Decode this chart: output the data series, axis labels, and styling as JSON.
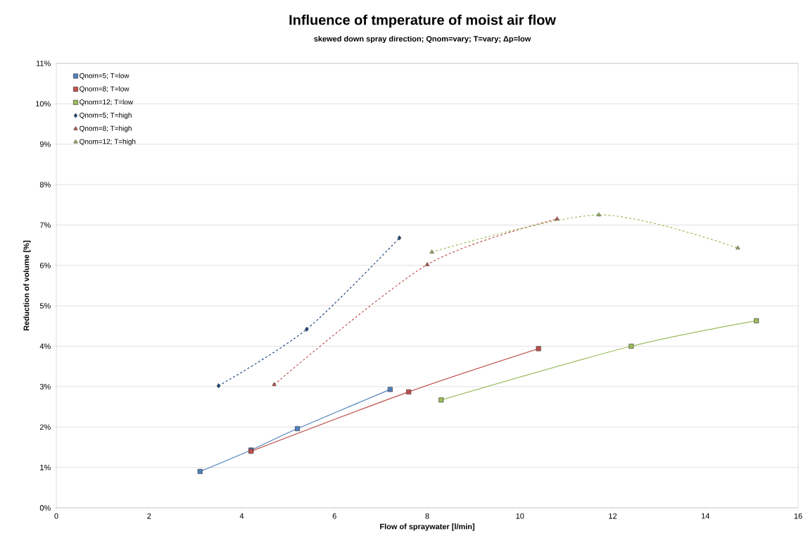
{
  "chart_data": {
    "type": "line",
    "title": "Influence of tmperature of moist air flow",
    "subtitle": "skewed down spray direction; Qnom=vary; T=vary; Δp=low",
    "xlabel": "Flow of spraywater [l/min]",
    "ylabel": "Reduction of volume [%]",
    "xlim": [
      0,
      16
    ],
    "xticks": [
      0,
      2,
      4,
      6,
      8,
      10,
      12,
      14,
      16
    ],
    "ylim": [
      0,
      11
    ],
    "yticks": [
      {
        "value": 0,
        "label": "0%"
      },
      {
        "value": 1,
        "label": "1%"
      },
      {
        "value": 2,
        "label": "2%"
      },
      {
        "value": 3,
        "label": "3%"
      },
      {
        "value": 4,
        "label": "4%"
      },
      {
        "value": 5,
        "label": "5%"
      },
      {
        "value": 6,
        "label": "6%"
      },
      {
        "value": 7,
        "label": "7%"
      },
      {
        "value": 8,
        "label": "8%"
      },
      {
        "value": 9,
        "label": "9%"
      },
      {
        "value": 10,
        "label": "10%"
      },
      {
        "value": 11,
        "label": "11%"
      }
    ],
    "grid": "y",
    "legend": "top left",
    "series": [
      {
        "name": "Qnom=5; T=low",
        "color": "#4f81bd",
        "marker": "square",
        "line_style": "solid",
        "x": [
          3.1,
          4.2,
          5.2,
          7.2
        ],
        "values": [
          0.9,
          1.43,
          1.96,
          2.93
        ]
      },
      {
        "name": "Qnom=8; T=low",
        "color": "#c0504d",
        "marker": "square",
        "line_style": "solid",
        "x": [
          4.2,
          7.6,
          10.4
        ],
        "values": [
          1.4,
          2.87,
          3.94
        ]
      },
      {
        "name": "Qnom=12; T=low",
        "color": "#9bbb59",
        "marker": "square",
        "line_style": "solid",
        "x": [
          8.3,
          12.4,
          15.1
        ],
        "values": [
          2.67,
          4.0,
          4.63
        ]
      },
      {
        "name": "Qnom=5; T=high",
        "color": "#1f497d",
        "marker": "diamond",
        "line_style": "dashed",
        "x": [
          3.5,
          5.4,
          7.4
        ],
        "values": [
          3.02,
          4.42,
          6.68
        ]
      },
      {
        "name": "Qnom=8; T=high",
        "color": "#c0504d",
        "marker": "triangle",
        "line_style": "dashed",
        "x": [
          4.7,
          8.0,
          10.8
        ],
        "values": [
          3.05,
          6.02,
          7.15
        ]
      },
      {
        "name": "Qnom=12; T=high",
        "color": "#9bbb59",
        "marker": "triangle",
        "line_style": "dashed",
        "x": [
          8.1,
          11.7,
          14.7
        ],
        "values": [
          6.33,
          7.25,
          6.43
        ]
      }
    ]
  }
}
